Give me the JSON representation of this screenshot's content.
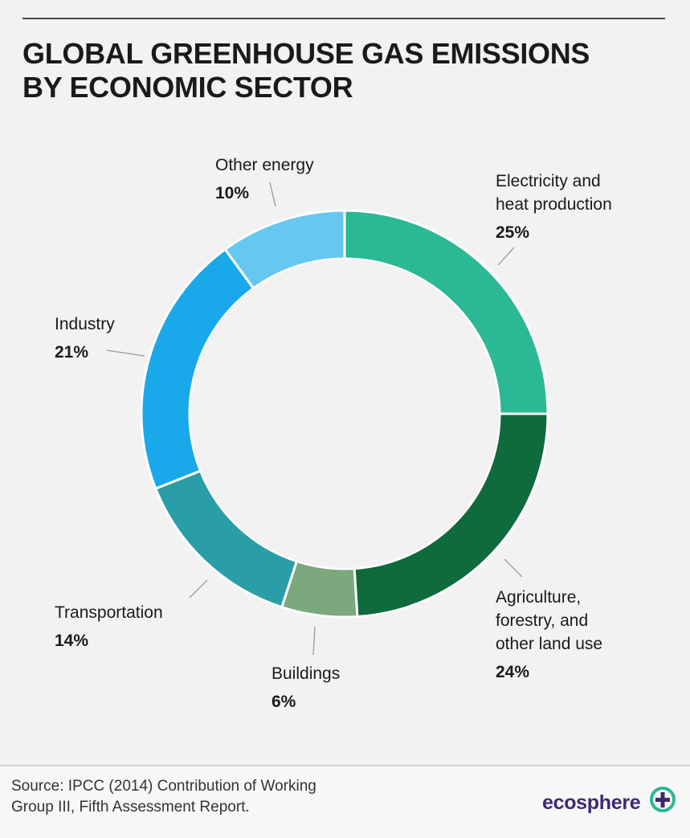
{
  "title": {
    "line1": "GLOBAL GREENHOUSE GAS EMISSIONS",
    "line2": "BY ECONOMIC SECTOR"
  },
  "chart_data": {
    "type": "pie",
    "variant": "donut",
    "title": "GLOBAL GREENHOUSE GAS EMISSIONS BY ECONOMIC SECTOR",
    "slices": [
      {
        "label": "Electricity and heat production",
        "label_lines": [
          "Electricity and",
          "heat production"
        ],
        "value": 25,
        "value_text": "25%",
        "color": "#2bb894"
      },
      {
        "label": "Agriculture, forestry, and other land use",
        "label_lines": [
          "Agriculture,",
          "forestry, and",
          "other land use"
        ],
        "value": 24,
        "value_text": "24%",
        "color": "#0f6b3c"
      },
      {
        "label": "Buildings",
        "label_lines": [
          "Buildings"
        ],
        "value": 6,
        "value_text": "6%",
        "color": "#7ba87c"
      },
      {
        "label": "Transportation",
        "label_lines": [
          "Transportation"
        ],
        "value": 14,
        "value_text": "14%",
        "color": "#2a9ea6"
      },
      {
        "label": "Industry",
        "label_lines": [
          "Industry"
        ],
        "value": 21,
        "value_text": "21%",
        "color": "#19a9ea"
      },
      {
        "label": "Other energy",
        "label_lines": [
          "Other energy"
        ],
        "value": 10,
        "value_text": "10%",
        "color": "#66c7f1"
      }
    ]
  },
  "footer": {
    "source_line1": "Source: IPCC (2014) Contribution of Working",
    "source_line2": "Group III, Fifth Assessment Report.",
    "brand": "ecosphere"
  },
  "colors": {
    "background": "#f2f2f2",
    "brand": "#3d2a6e",
    "brand_accent": "#2bb894"
  }
}
